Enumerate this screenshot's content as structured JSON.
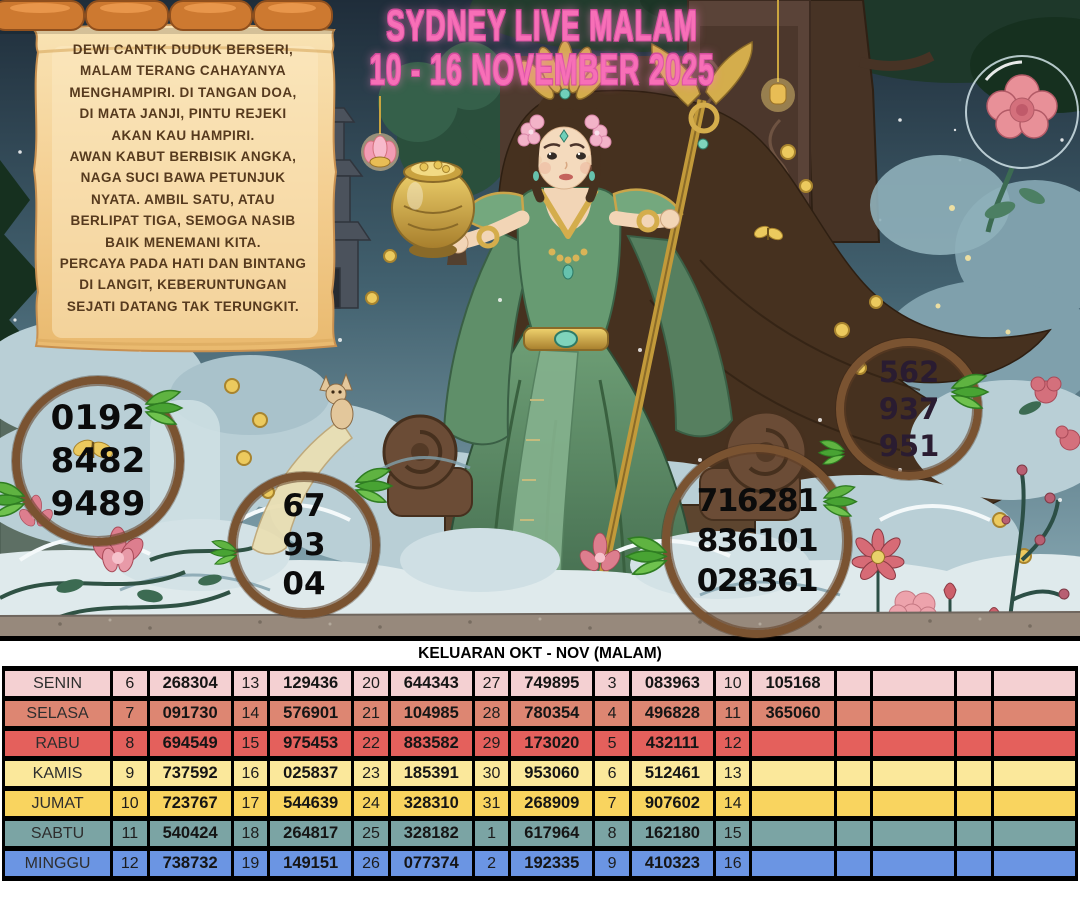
{
  "banner": {
    "line1": "SYDNEY LIVE MALAM",
    "line2": "10 - 16 NOVEMBER 2025",
    "color": "#f76fb7"
  },
  "poem": {
    "lines": [
      "DEWI CANTIK DUDUK BERSERI,",
      "MALAM TERANG CAHAYANYA",
      "MENGHAMPIRI. DI TANGAN DOA,",
      "DI MATA JANJI, PINTU REJEKI",
      "AKAN KAU HAMPIRI.",
      "AWAN KABUT BERBISIK ANGKA,",
      "NAGA SUCI BAWA PETUNJUK",
      "NYATA. AMBIL SATU, ATAU",
      "BERLIPAT TIGA, SEMOGA NASIB",
      "BAIK MENEMANI KITA.",
      "PERCAYA PADA HATI DAN BINTANG",
      "DI LANGIT, KEBERUNTUNGAN",
      "SEJATI DATANG TAK TERUNGKIT."
    ]
  },
  "circles": [
    {
      "name": "left",
      "lines": [
        "0192",
        "8482",
        "9489"
      ]
    },
    {
      "name": "middle",
      "lines": [
        "67",
        "93",
        "04"
      ]
    },
    {
      "name": "right",
      "lines": [
        "716281",
        "836101",
        "028361"
      ]
    },
    {
      "name": "topright",
      "lines": [
        "562",
        "937",
        "951"
      ]
    }
  ],
  "circle_style": {
    "ring_color": "#7a5331",
    "number_color": "#0b0b0b"
  },
  "table": {
    "title": "KELUARAN OKT - NOV (MALAM)",
    "rows": [
      {
        "day": "SENIN",
        "bg": "#f4d0d2",
        "cells": [
          "6",
          "268304",
          "13",
          "129436",
          "20",
          "644343",
          "27",
          "749895",
          "3",
          "083963",
          "10",
          "105168",
          "",
          "",
          "",
          ""
        ]
      },
      {
        "day": "SELASA",
        "bg": "#dd8672",
        "cells": [
          "7",
          "091730",
          "14",
          "576901",
          "21",
          "104985",
          "28",
          "780354",
          "4",
          "496828",
          "11",
          "365060",
          "",
          "",
          "",
          ""
        ]
      },
      {
        "day": "RABU",
        "bg": "#e4605c",
        "cells": [
          "8",
          "694549",
          "15",
          "975453",
          "22",
          "883582",
          "29",
          "173020",
          "5",
          "432111",
          "12",
          "",
          "",
          "",
          "",
          ""
        ]
      },
      {
        "day": "KAMIS",
        "bg": "#fbe89b",
        "cells": [
          "9",
          "737592",
          "16",
          "025837",
          "23",
          "185391",
          "30",
          "953060",
          "6",
          "512461",
          "13",
          "",
          "",
          "",
          "",
          ""
        ]
      },
      {
        "day": "JUMAT",
        "bg": "#f9d45f",
        "cells": [
          "10",
          "723767",
          "17",
          "544639",
          "24",
          "328310",
          "31",
          "268909",
          "7",
          "907602",
          "14",
          "",
          "",
          "",
          "",
          ""
        ]
      },
      {
        "day": "SABTU",
        "bg": "#7ba4a4",
        "cells": [
          "11",
          "540424",
          "18",
          "264817",
          "25",
          "328182",
          "1",
          "617964",
          "8",
          "162180",
          "15",
          "",
          "",
          "",
          "",
          ""
        ]
      },
      {
        "day": "MINGGU",
        "bg": "#6b95e3",
        "cells": [
          "12",
          "738732",
          "19",
          "149151",
          "26",
          "077374",
          "2",
          "192335",
          "9",
          "410323",
          "16",
          "",
          "",
          "",
          "",
          ""
        ]
      }
    ]
  }
}
